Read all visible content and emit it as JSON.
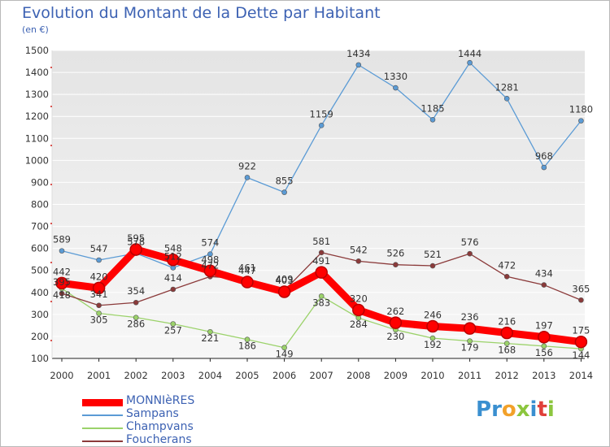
{
  "title": "Evolution du Montant de la Dette par Habitant",
  "unit": "(en €)",
  "brand": {
    "text": "Proxiti",
    "letters": [
      {
        "ch": "P",
        "color": "#3a8fd0"
      },
      {
        "ch": "r",
        "color": "#3a8fd0"
      },
      {
        "ch": "o",
        "color": "#f2a12a"
      },
      {
        "ch": "x",
        "color": "#8cc63e"
      },
      {
        "ch": "i",
        "color": "#3a8fd0"
      },
      {
        "ch": "t",
        "color": "#e0403a"
      },
      {
        "ch": "i",
        "color": "#8cc63e"
      }
    ]
  },
  "chart_data": {
    "type": "line",
    "title": "Evolution du Montant de la Dette par Habitant",
    "ylabel": "(en €)",
    "xlabel": "",
    "categories": [
      "2000",
      "2001",
      "2002",
      "2003",
      "2004",
      "2005",
      "2006",
      "2007",
      "2008",
      "2009",
      "2010",
      "2011",
      "2012",
      "2013",
      "2014"
    ],
    "ylim": [
      100,
      1500
    ],
    "yticks": [
      100,
      200,
      300,
      400,
      500,
      600,
      700,
      800,
      900,
      1000,
      1100,
      1200,
      1300,
      1400,
      1500
    ],
    "grid": true,
    "legend_position": "bottom-left",
    "series": [
      {
        "name": "MONNIèRES",
        "color": "#ff0000",
        "label_color": "#333333",
        "values": [
          442,
          420,
          595,
          548,
          498,
          447,
          403,
          491,
          320,
          262,
          246,
          236,
          216,
          197,
          175
        ],
        "labels": [
          "442",
          "420",
          "595",
          "548",
          "498",
          "447",
          "403",
          "491",
          "320",
          "262",
          "246",
          "236",
          "216",
          "197",
          "175"
        ]
      },
      {
        "name": "Sampans",
        "color": "#5b9bd5",
        "label_color": "#333333",
        "values": [
          589,
          547,
          578,
          512,
          574,
          922,
          855,
          1159,
          1434,
          1330,
          1185,
          1444,
          1281,
          968,
          1180
        ],
        "labels": [
          "589",
          "547",
          "578",
          "512",
          "574",
          "922",
          "855",
          "1159",
          "1434",
          "1330",
          "1185",
          "1444",
          "1281",
          "968",
          "1180"
        ]
      },
      {
        "name": "Champvans",
        "color": "#9bd26a",
        "label_color": "#333333",
        "values": [
          418,
          305,
          286,
          257,
          221,
          186,
          149,
          383,
          284,
          230,
          192,
          179,
          168,
          156,
          144
        ],
        "labels": [
          "418",
          "305",
          "286",
          "257",
          "221",
          "186",
          "149",
          "383",
          "284",
          "230",
          "192",
          "179",
          "168",
          "156",
          "144"
        ]
      },
      {
        "name": "Foucherans",
        "color": "#8b3a3a",
        "label_color": "#333333",
        "values": [
          395,
          341,
          354,
          414,
          472,
          461,
          409,
          581,
          542,
          526,
          521,
          576,
          472,
          434,
          365
        ],
        "labels": [
          "395",
          "341",
          "354",
          "414",
          "472",
          "461",
          "409",
          "581",
          "542",
          "526",
          "521",
          "576",
          "472",
          "434",
          "365"
        ]
      }
    ]
  }
}
